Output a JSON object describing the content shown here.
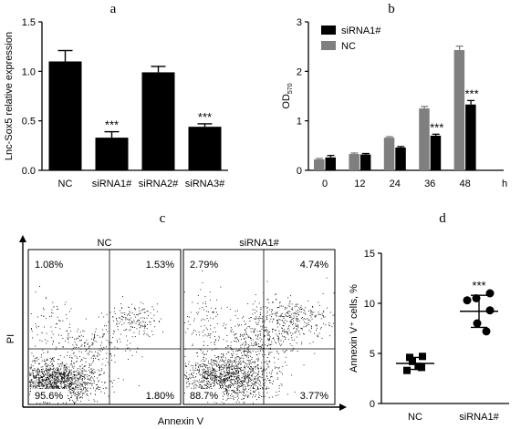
{
  "panels": {
    "a": "a",
    "b": "b",
    "c": "c",
    "d": "d"
  },
  "chart_data": [
    {
      "id": "a",
      "type": "bar",
      "ylabel": "Lnc-Sox5 relative expression",
      "ylim": [
        0,
        1.5
      ],
      "yticks": [
        "0.0",
        "0.5",
        "1.0",
        "1.5"
      ],
      "categories": [
        "NC",
        "siRNA1#",
        "siRNA2#",
        "siRNA3#"
      ],
      "values": [
        1.1,
        0.33,
        0.99,
        0.44
      ],
      "errors": [
        0.11,
        0.06,
        0.06,
        0.03
      ],
      "annotations": [
        "",
        "***",
        "",
        "***"
      ],
      "color": "#000000"
    },
    {
      "id": "b",
      "type": "bar",
      "ylabel": "OD",
      "ylabel_sub": "570",
      "ylim": [
        0,
        3
      ],
      "yticks": [
        "0",
        "1",
        "2",
        "3"
      ],
      "categories": [
        "0",
        "12",
        "24",
        "36",
        "48"
      ],
      "x_unit": "h",
      "legend_position": "top-left",
      "series": [
        {
          "name": "NC",
          "color": "#7f7f7f",
          "values": [
            0.22,
            0.33,
            0.66,
            1.25,
            2.43
          ],
          "errors": [
            0.02,
            0.02,
            0.02,
            0.04,
            0.08
          ]
        },
        {
          "name": "siRNA1#",
          "color": "#000000",
          "values": [
            0.26,
            0.32,
            0.46,
            0.7,
            1.33
          ],
          "errors": [
            0.04,
            0.02,
            0.02,
            0.03,
            0.08
          ],
          "annotations": [
            "",
            "",
            "",
            "***",
            "***"
          ]
        }
      ]
    },
    {
      "id": "c",
      "type": "scatter",
      "xlabel": "Annexin V",
      "ylabel": "PI",
      "plots": [
        {
          "title": "NC",
          "quadrants": {
            "ul": "1.08%",
            "ur": "1.53%",
            "ll": "95.6%",
            "lr": "1.80%"
          }
        },
        {
          "title": "siRNA1#",
          "quadrants": {
            "ul": "2.79%",
            "ur": "4.74%",
            "ll": "88.7%",
            "lr": "3.77%"
          }
        }
      ]
    },
    {
      "id": "d",
      "type": "scatter",
      "ylabel": "Annexin V⁺ cells, %",
      "ylim": [
        0,
        15
      ],
      "yticks": [
        "0",
        "5",
        "10",
        "15"
      ],
      "categories": [
        "NC",
        "siRNA1#"
      ],
      "groups": [
        {
          "name": "NC",
          "points": [
            4.6,
            4.7,
            4.2,
            3.7,
            3.3,
            3.6
          ],
          "mean": 4.0,
          "sd": 0.6
        },
        {
          "name": "siRNA1#",
          "points": [
            10.5,
            11.0,
            10.3,
            9.3,
            8.0,
            7.2
          ],
          "mean": 9.2,
          "sd": 1.6,
          "annotation": "***"
        }
      ]
    }
  ]
}
